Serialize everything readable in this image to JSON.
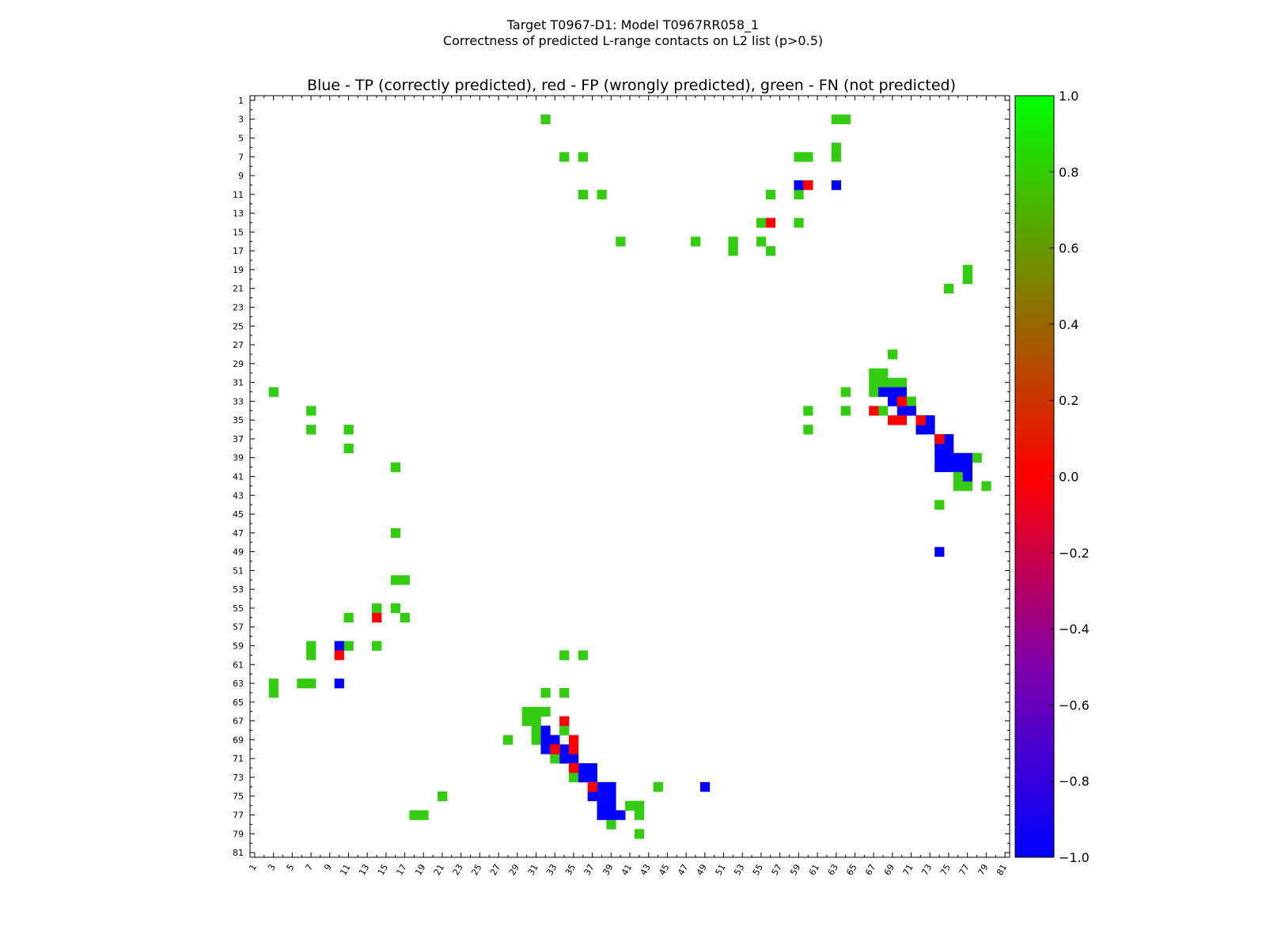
{
  "figure_title": {
    "line1": "Target T0967-D1: Model T0967RR058_1",
    "line2": "Correctness of predicted L-range contacts on L2 list (p>0.5)"
  },
  "colors": {
    "tp": "#0000ff",
    "fp": "#ff0000",
    "fn": "#33cc11",
    "background": "#ffffff"
  },
  "chart_data": {
    "type": "heatmap",
    "title": "Blue - TP (correctly predicted), red - FP (wrongly predicted), green - FN (not predicted)",
    "xlabel": "",
    "ylabel": "",
    "xlim": [
      1,
      81
    ],
    "ylim": [
      1,
      81
    ],
    "x_ticks": [
      "1",
      "3",
      "5",
      "7",
      "9",
      "11",
      "13",
      "15",
      "17",
      "19",
      "21",
      "23",
      "25",
      "27",
      "29",
      "31",
      "33",
      "35",
      "37",
      "39",
      "41",
      "43",
      "45",
      "47",
      "49",
      "51",
      "53",
      "55",
      "57",
      "59",
      "61",
      "63",
      "65",
      "67",
      "69",
      "71",
      "73",
      "75",
      "77",
      "79",
      "81"
    ],
    "y_ticks": [
      "1",
      "3",
      "5",
      "7",
      "9",
      "11",
      "13",
      "15",
      "17",
      "19",
      "21",
      "23",
      "25",
      "27",
      "29",
      "31",
      "33",
      "35",
      "37",
      "39",
      "41",
      "43",
      "45",
      "47",
      "49",
      "51",
      "53",
      "55",
      "57",
      "59",
      "61",
      "63",
      "65",
      "67",
      "69",
      "71",
      "73",
      "75",
      "77",
      "79",
      "81"
    ],
    "colorbar": {
      "min": -1.0,
      "max": 1.0,
      "ticks": [
        "1.0",
        "0.8",
        "0.6",
        "0.4",
        "0.2",
        "0.0",
        "−0.2",
        "−0.4",
        "−0.6",
        "−0.8",
        "−1.0"
      ]
    },
    "cells": {
      "tp": [
        [
          59,
          10
        ],
        [
          63,
          10
        ],
        [
          68,
          32
        ],
        [
          69,
          32
        ],
        [
          70,
          32
        ],
        [
          69,
          33
        ],
        [
          70,
          34
        ],
        [
          71,
          34
        ],
        [
          72,
          35
        ],
        [
          73,
          35
        ],
        [
          72,
          36
        ],
        [
          73,
          36
        ],
        [
          74,
          37
        ],
        [
          75,
          37
        ],
        [
          74,
          38
        ],
        [
          75,
          38
        ],
        [
          74,
          39
        ],
        [
          75,
          39
        ],
        [
          76,
          39
        ],
        [
          77,
          39
        ],
        [
          74,
          40
        ],
        [
          75,
          40
        ],
        [
          76,
          40
        ],
        [
          77,
          40
        ],
        [
          77,
          41
        ],
        [
          74,
          49
        ],
        [
          10,
          59
        ],
        [
          10,
          63
        ],
        [
          32,
          68
        ],
        [
          32,
          69
        ],
        [
          33,
          69
        ],
        [
          32,
          70
        ],
        [
          33,
          70
        ],
        [
          34,
          70
        ],
        [
          34,
          71
        ],
        [
          35,
          71
        ],
        [
          35,
          72
        ],
        [
          36,
          72
        ],
        [
          37,
          72
        ],
        [
          36,
          73
        ],
        [
          37,
          73
        ],
        [
          38,
          74
        ],
        [
          39,
          74
        ],
        [
          37,
          75
        ],
        [
          38,
          75
        ],
        [
          39,
          75
        ],
        [
          38,
          76
        ],
        [
          39,
          76
        ],
        [
          38,
          77
        ],
        [
          39,
          77
        ],
        [
          40,
          77
        ],
        [
          49,
          74
        ]
      ],
      "fp": [
        [
          60,
          10
        ],
        [
          56,
          14
        ],
        [
          70,
          33
        ],
        [
          67,
          34
        ],
        [
          69,
          35
        ],
        [
          70,
          35
        ],
        [
          72,
          35
        ],
        [
          74,
          37
        ],
        [
          14,
          56
        ],
        [
          10,
          60
        ],
        [
          34,
          67
        ],
        [
          35,
          69
        ],
        [
          33,
          70
        ],
        [
          35,
          70
        ],
        [
          35,
          72
        ],
        [
          37,
          74
        ]
      ],
      "fn": [
        [
          32,
          3
        ],
        [
          63,
          3
        ],
        [
          64,
          3
        ],
        [
          34,
          7
        ],
        [
          36,
          7
        ],
        [
          59,
          7
        ],
        [
          60,
          7
        ],
        [
          63,
          6
        ],
        [
          63,
          7
        ],
        [
          36,
          11
        ],
        [
          38,
          11
        ],
        [
          56,
          11
        ],
        [
          59,
          11
        ],
        [
          55,
          14
        ],
        [
          59,
          14
        ],
        [
          40,
          16
        ],
        [
          48,
          16
        ],
        [
          52,
          16
        ],
        [
          55,
          16
        ],
        [
          52,
          17
        ],
        [
          56,
          17
        ],
        [
          77,
          19
        ],
        [
          77,
          20
        ],
        [
          75,
          21
        ],
        [
          69,
          28
        ],
        [
          67,
          30
        ],
        [
          68,
          30
        ],
        [
          67,
          31
        ],
        [
          68,
          31
        ],
        [
          69,
          31
        ],
        [
          70,
          31
        ],
        [
          64,
          32
        ],
        [
          67,
          32
        ],
        [
          71,
          33
        ],
        [
          60,
          34
        ],
        [
          64,
          34
        ],
        [
          68,
          34
        ],
        [
          73,
          35
        ],
        [
          60,
          36
        ],
        [
          78,
          39
        ],
        [
          76,
          41
        ],
        [
          76,
          42
        ],
        [
          77,
          42
        ],
        [
          79,
          42
        ],
        [
          74,
          44
        ],
        [
          3,
          32
        ],
        [
          7,
          34
        ],
        [
          7,
          36
        ],
        [
          11,
          36
        ],
        [
          11,
          38
        ],
        [
          16,
          40
        ],
        [
          16,
          47
        ],
        [
          16,
          52
        ],
        [
          17,
          52
        ],
        [
          14,
          55
        ],
        [
          16,
          55
        ],
        [
          11,
          56
        ],
        [
          17,
          56
        ],
        [
          7,
          59
        ],
        [
          7,
          60
        ],
        [
          11,
          59
        ],
        [
          14,
          59
        ],
        [
          34,
          60
        ],
        [
          36,
          60
        ],
        [
          3,
          63
        ],
        [
          3,
          64
        ],
        [
          6,
          63
        ],
        [
          7,
          63
        ],
        [
          32,
          64
        ],
        [
          34,
          64
        ],
        [
          30,
          66
        ],
        [
          31,
          66
        ],
        [
          32,
          66
        ],
        [
          30,
          67
        ],
        [
          31,
          67
        ],
        [
          31,
          68
        ],
        [
          34,
          68
        ],
        [
          28,
          69
        ],
        [
          31,
          69
        ],
        [
          33,
          71
        ],
        [
          35,
          73
        ],
        [
          44,
          74
        ],
        [
          21,
          75
        ],
        [
          41,
          76
        ],
        [
          42,
          76
        ],
        [
          42,
          77
        ],
        [
          18,
          77
        ],
        [
          19,
          77
        ],
        [
          39,
          78
        ],
        [
          42,
          79
        ]
      ]
    }
  }
}
